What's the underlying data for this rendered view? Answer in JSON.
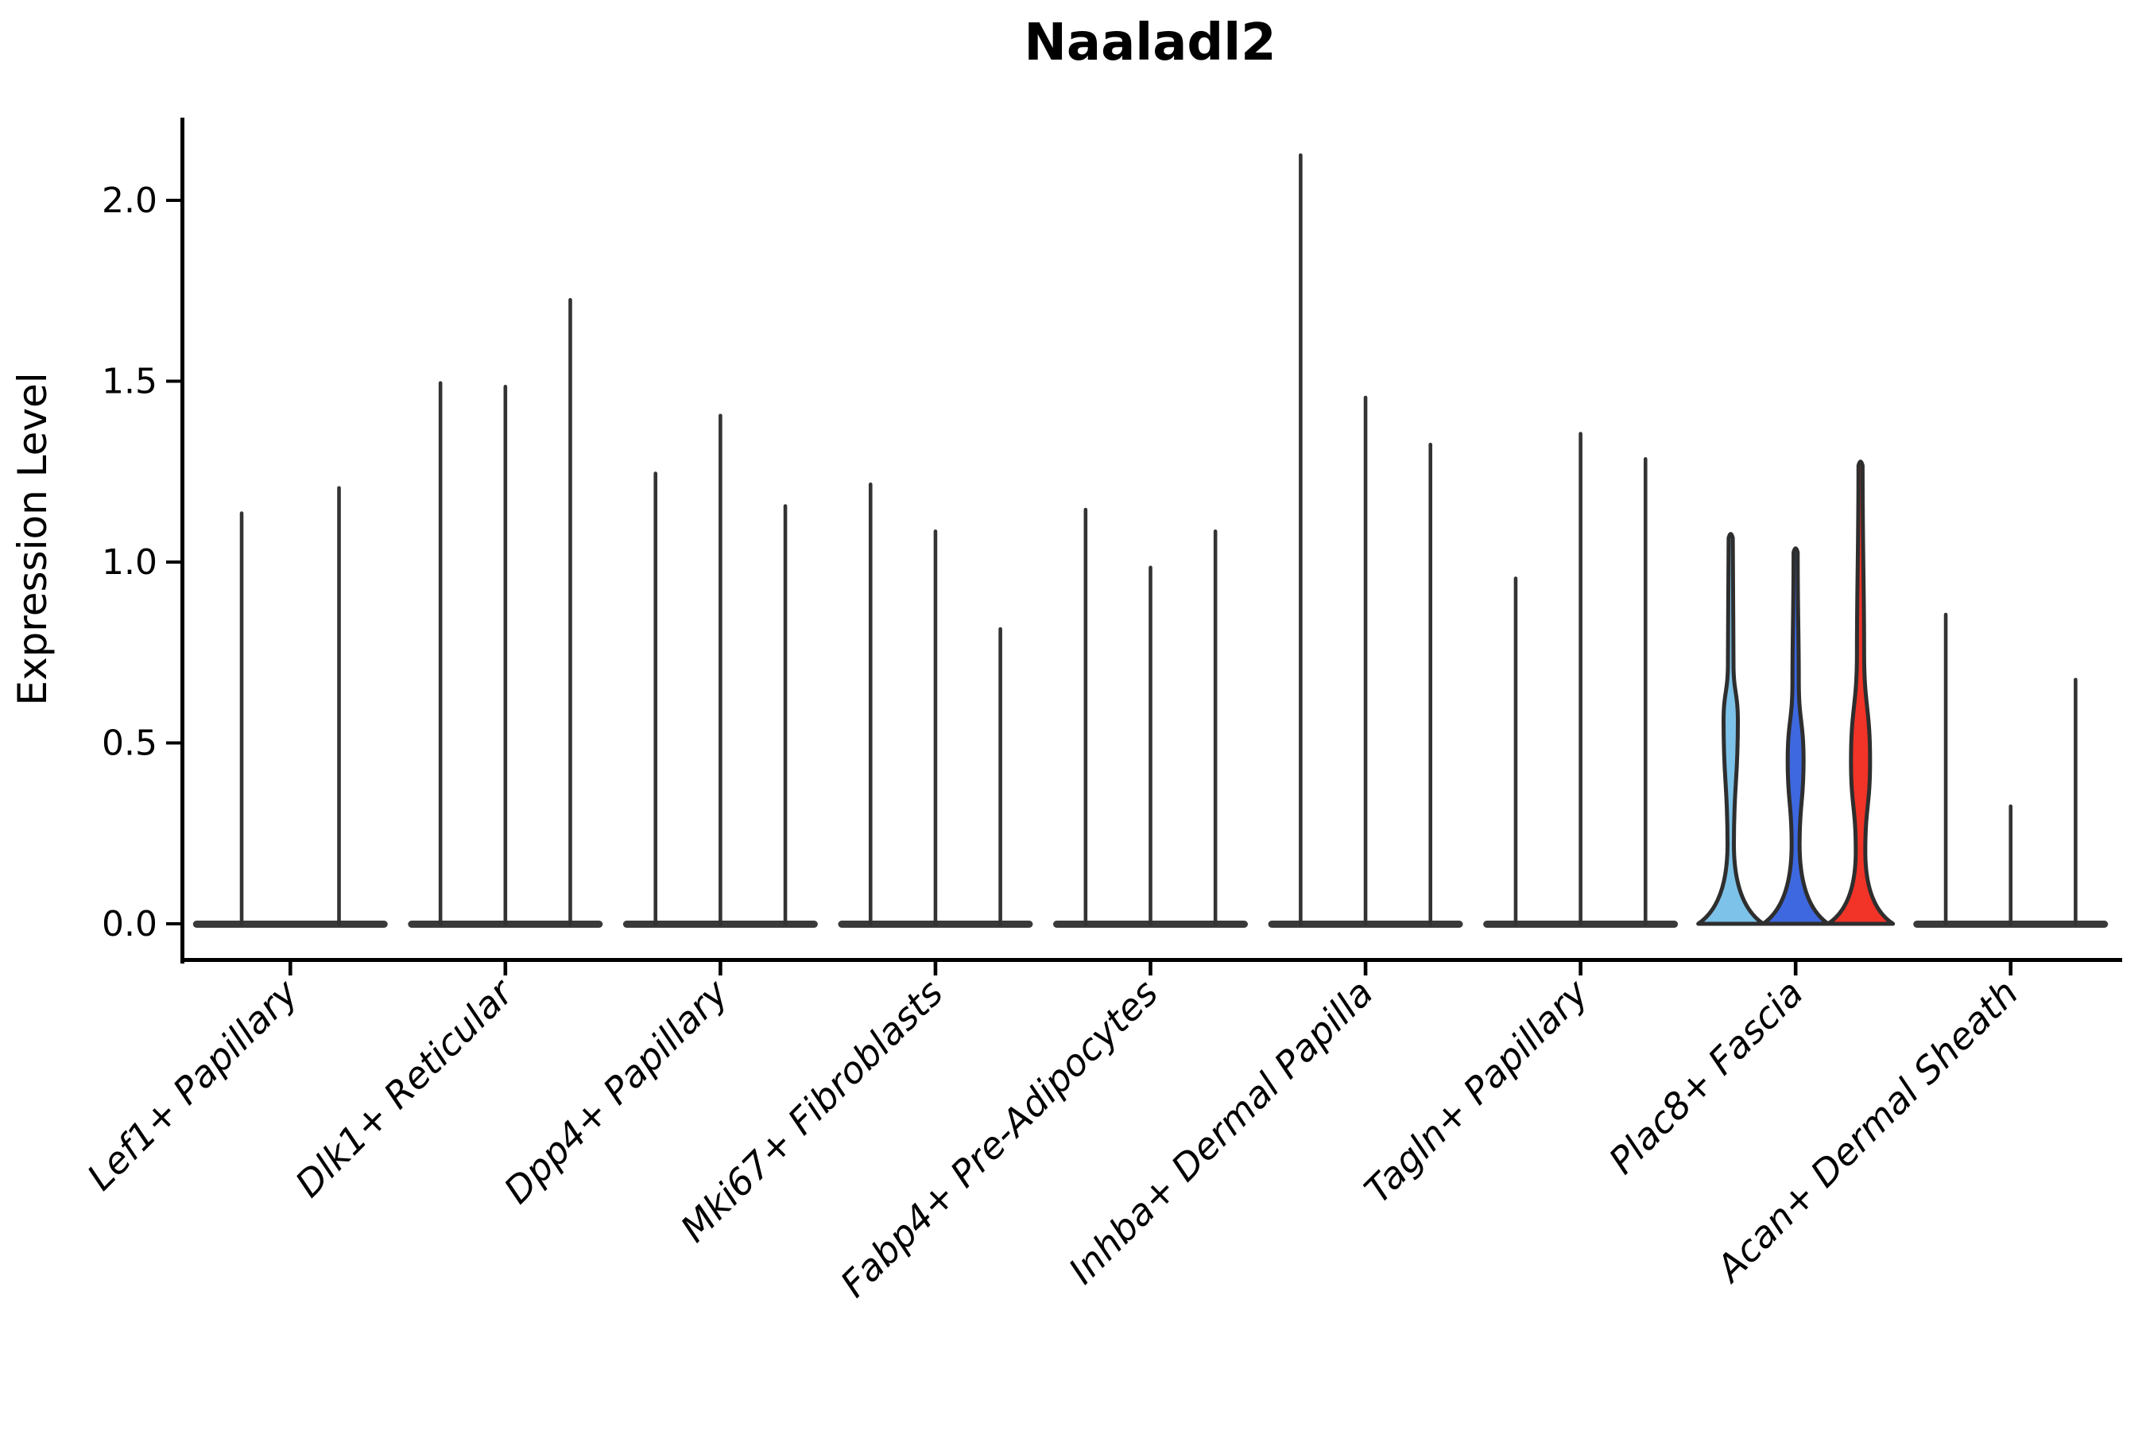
{
  "title": "Naaladl2",
  "y_axis": {
    "label": "Expression Level",
    "tick_labels": [
      "0.0",
      "0.5",
      "1.0",
      "1.5",
      "2.0"
    ]
  },
  "chart_data": {
    "type": "violin",
    "title": "Naaladl2",
    "xlabel": "",
    "ylabel": "Expression Level",
    "ylim": [
      0,
      2.22
    ],
    "yticks": [
      0,
      0.5,
      1.0,
      1.5,
      2.0
    ],
    "x_tick_rotation": 45,
    "grid": false,
    "legend_position": "none",
    "categories": [
      "Lef1+ Papillary",
      "Dlk1+ Reticular",
      "Dpp4+ Papillary",
      "Mki67+ Fibroblasts",
      "Fabp4+ Pre-Adipocytes",
      "Inhba+ Dermal Papilla",
      "Tagln+ Papillary",
      "Plac8+ Fascia",
      "Acan+ Dermal Sheath"
    ],
    "groups": [
      {
        "category": "Lef1+ Papillary",
        "violins": [
          {
            "max": 1.14
          },
          {
            "max": 1.21
          }
        ]
      },
      {
        "category": "Dlk1+ Reticular",
        "violins": [
          {
            "max": 1.5
          },
          {
            "max": 1.49
          },
          {
            "max": 1.73
          }
        ]
      },
      {
        "category": "Dpp4+ Papillary",
        "violins": [
          {
            "max": 1.25
          },
          {
            "max": 1.41
          },
          {
            "max": 1.16
          }
        ]
      },
      {
        "category": "Mki67+ Fibroblasts",
        "violins": [
          {
            "max": 1.22
          },
          {
            "max": 1.09
          },
          {
            "max": 0.82
          }
        ]
      },
      {
        "category": "Fabp4+ Pre-Adipocytes",
        "violins": [
          {
            "max": 1.15
          },
          {
            "max": 0.99
          },
          {
            "max": 1.09
          }
        ]
      },
      {
        "category": "Inhba+ Dermal Papilla",
        "violins": [
          {
            "max": 2.13
          },
          {
            "max": 1.46
          },
          {
            "max": 1.33
          }
        ]
      },
      {
        "category": "Tagln+ Papillary",
        "violins": [
          {
            "max": 0.96
          },
          {
            "max": 1.36
          },
          {
            "max": 1.29
          }
        ]
      },
      {
        "category": "Plac8+ Fascia",
        "violins": [
          {
            "max": 1.08,
            "fill": "#7DC2E8",
            "body": {
              "neck_lo": [
                0.22,
                4.0
              ],
              "bulge": [
                0.56,
                9.0
              ],
              "neck_hi": [
                0.72,
                3.5
              ]
            }
          },
          {
            "max": 1.04,
            "fill": "#3D68DF",
            "body": {
              "neck_lo": [
                0.22,
                5.0
              ],
              "bulge": [
                0.45,
                10.0
              ],
              "neck_hi": [
                0.67,
                4.0
              ]
            }
          },
          {
            "max": 1.28,
            "fill": "#F23328",
            "body": {
              "neck_lo": [
                0.2,
                6.0
              ],
              "bulge": [
                0.45,
                12.0
              ],
              "neck_hi": [
                0.75,
                4.5
              ]
            }
          }
        ]
      },
      {
        "category": "Acan+ Dermal Sheath",
        "violins": [
          {
            "max": 0.86
          },
          {
            "max": 0.33
          },
          {
            "max": 0.68
          }
        ]
      }
    ],
    "colors": {
      "spike": "#333333",
      "base_bar": "#3a3a3a",
      "outline": "#2e2e2e",
      "axis": "#000000"
    }
  }
}
